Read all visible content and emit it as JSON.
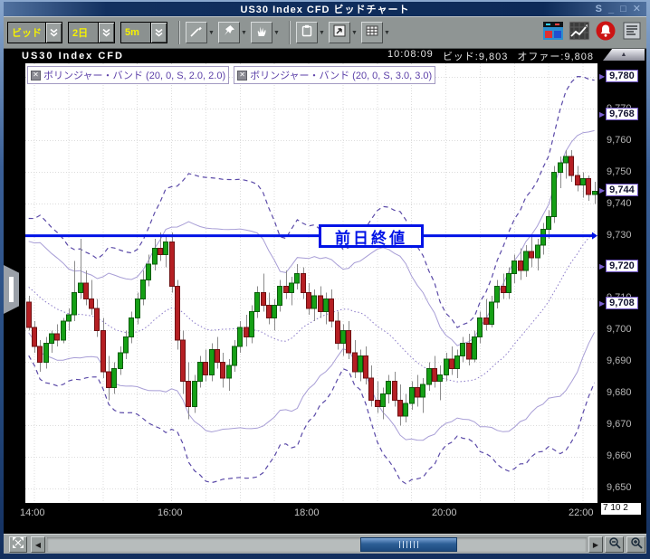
{
  "window": {
    "title": "US30 Index CFD ビッドチャート",
    "controls": [
      {
        "name": "float",
        "glyph": "S"
      },
      {
        "name": "minimize",
        "glyph": "_"
      },
      {
        "name": "maximize",
        "glyph": "□"
      },
      {
        "name": "close",
        "glyph": "✕"
      }
    ]
  },
  "toolbar": {
    "dropdowns": [
      {
        "label": "ビッド"
      },
      {
        "label": "2日"
      },
      {
        "label": "5m"
      }
    ]
  },
  "chart_header": {
    "title": "US30 Index CFD",
    "time": "10:08:09",
    "bid": "ビッド:9,803",
    "offer": "オファー:9,808"
  },
  "indicators": [
    {
      "label": "ボリンジャー・バンド (20, 0, S, 2.0, 2.0)"
    },
    {
      "label": "ボリンジャー・バンド (20, 0, S, 3.0, 3.0)"
    }
  ],
  "date_box": "7 10 2",
  "chart_data": {
    "type": "candlestick",
    "symbol": "US30 Index CFD",
    "interval_label": "5m",
    "range_label": "2日",
    "start_time": "13:55",
    "step_minutes": 5,
    "ylim": [
      9645.5,
      9784.5
    ],
    "y_tick_start": 9650,
    "y_tick_end": 9780,
    "y_tick_step": 10,
    "x_ticks": [
      {
        "label": "14:00",
        "index": 1
      },
      {
        "label": "16:00",
        "index": 25
      },
      {
        "label": "18:00",
        "index": 49
      },
      {
        "label": "20:00",
        "index": 73
      },
      {
        "label": "22:00",
        "index": 97
      }
    ],
    "prev_close": {
      "value": 9730,
      "label": "前日終値"
    },
    "price_labels": [
      {
        "value": 9780,
        "text": "9,780"
      },
      {
        "value": 9768,
        "text": "9,768"
      },
      {
        "value": 9744,
        "text": "9,744"
      },
      {
        "value": 9720,
        "text": "9,720"
      },
      {
        "value": 9708,
        "text": "9,708"
      }
    ],
    "bollinger": [
      {
        "period": 20,
        "shift": 0,
        "ma_type": "S",
        "dev": 2.0
      },
      {
        "period": 20,
        "shift": 0,
        "ma_type": "S",
        "dev": 3.0
      }
    ],
    "pre_closes": [
      9726,
      9724,
      9725,
      9722,
      9720,
      9718,
      9719,
      9716,
      9714,
      9715,
      9712,
      9713,
      9710,
      9708,
      9710,
      9707,
      9705,
      9706,
      9704
    ],
    "candles": [
      [
        9709,
        9711,
        9700,
        9701
      ],
      [
        9701,
        9703,
        9693,
        9695
      ],
      [
        9695,
        9697,
        9687,
        9690
      ],
      [
        9690,
        9698,
        9688,
        9696
      ],
      [
        9696,
        9700,
        9693,
        9699
      ],
      [
        9699,
        9702,
        9695,
        9697
      ],
      [
        9697,
        9704,
        9696,
        9703
      ],
      [
        9703,
        9707,
        9700,
        9705
      ],
      [
        9705,
        9722,
        9703,
        9712
      ],
      [
        9712,
        9729,
        9710,
        9715
      ],
      [
        9715,
        9719,
        9708,
        9710
      ],
      [
        9710,
        9716,
        9705,
        9707
      ],
      [
        9707,
        9710,
        9698,
        9700
      ],
      [
        9700,
        9704,
        9685,
        9687
      ],
      [
        9687,
        9692,
        9678,
        9682
      ],
      [
        9682,
        9690,
        9680,
        9688
      ],
      [
        9688,
        9695,
        9686,
        9693
      ],
      [
        9693,
        9700,
        9691,
        9698
      ],
      [
        9698,
        9706,
        9696,
        9704
      ],
      [
        9704,
        9712,
        9702,
        9710
      ],
      [
        9710,
        9719,
        9708,
        9716
      ],
      [
        9716,
        9724,
        9714,
        9721
      ],
      [
        9721,
        9729,
        9719,
        9726
      ],
      [
        9726,
        9731,
        9722,
        9724
      ],
      [
        9724,
        9730,
        9720,
        9728
      ],
      [
        9728,
        9731,
        9712,
        9714
      ],
      [
        9714,
        9716,
        9694,
        9697
      ],
      [
        9697,
        9700,
        9680,
        9684
      ],
      [
        9684,
        9690,
        9672,
        9676
      ],
      [
        9676,
        9686,
        9674,
        9684
      ],
      [
        9684,
        9692,
        9682,
        9690
      ],
      [
        9690,
        9694,
        9684,
        9686
      ],
      [
        9686,
        9696,
        9684,
        9694
      ],
      [
        9694,
        9698,
        9688,
        9690
      ],
      [
        9690,
        9693,
        9682,
        9685
      ],
      [
        9685,
        9691,
        9681,
        9689
      ],
      [
        9689,
        9697,
        9687,
        9695
      ],
      [
        9695,
        9703,
        9693,
        9701
      ],
      [
        9701,
        9705,
        9695,
        9698
      ],
      [
        9698,
        9708,
        9696,
        9706
      ],
      [
        9706,
        9714,
        9704,
        9712
      ],
      [
        9712,
        9718,
        9706,
        9708
      ],
      [
        9708,
        9712,
        9702,
        9704
      ],
      [
        9704,
        9710,
        9700,
        9708
      ],
      [
        9708,
        9716,
        9706,
        9714
      ],
      [
        9714,
        9719,
        9710,
        9712
      ],
      [
        9712,
        9717,
        9708,
        9715
      ],
      [
        9715,
        9721,
        9713,
        9718
      ],
      [
        9718,
        9720,
        9710,
        9712
      ],
      [
        9712,
        9715,
        9705,
        9707
      ],
      [
        9707,
        9713,
        9703,
        9711
      ],
      [
        9711,
        9714,
        9704,
        9706
      ],
      [
        9706,
        9712,
        9702,
        9710
      ],
      [
        9710,
        9713,
        9701,
        9703
      ],
      [
        9703,
        9706,
        9694,
        9696
      ],
      [
        9696,
        9702,
        9692,
        9700
      ],
      [
        9700,
        9703,
        9691,
        9693
      ],
      [
        9693,
        9697,
        9685,
        9687
      ],
      [
        9687,
        9694,
        9684,
        9692
      ],
      [
        9692,
        9695,
        9683,
        9685
      ],
      [
        9685,
        9689,
        9676,
        9678
      ],
      [
        9678,
        9684,
        9674,
        9676
      ],
      [
        9676,
        9682,
        9672,
        9680
      ],
      [
        9680,
        9686,
        9677,
        9684
      ],
      [
        9684,
        9687,
        9676,
        9678
      ],
      [
        9678,
        9683,
        9670,
        9673
      ],
      [
        9673,
        9680,
        9671,
        9677
      ],
      [
        9677,
        9684,
        9675,
        9682
      ],
      [
        9682,
        9686,
        9676,
        9679
      ],
      [
        9679,
        9685,
        9674,
        9683
      ],
      [
        9683,
        9690,
        9681,
        9688
      ],
      [
        9688,
        9692,
        9682,
        9684
      ],
      [
        9684,
        9689,
        9678,
        9686
      ],
      [
        9686,
        9693,
        9684,
        9691
      ],
      [
        9691,
        9695,
        9686,
        9688
      ],
      [
        9688,
        9694,
        9685,
        9692
      ],
      [
        9692,
        9698,
        9690,
        9696
      ],
      [
        9696,
        9699,
        9689,
        9691
      ],
      [
        9691,
        9700,
        9690,
        9698
      ],
      [
        9698,
        9706,
        9696,
        9704
      ],
      [
        9704,
        9710,
        9700,
        9702
      ],
      [
        9702,
        9711,
        9701,
        9709
      ],
      [
        9709,
        9716,
        9707,
        9714
      ],
      [
        9714,
        9718,
        9710,
        9712
      ],
      [
        9712,
        9720,
        9710,
        9718
      ],
      [
        9718,
        9724,
        9715,
        9722
      ],
      [
        9722,
        9726,
        9716,
        9719
      ],
      [
        9719,
        9727,
        9717,
        9725
      ],
      [
        9725,
        9730,
        9720,
        9723
      ],
      [
        9723,
        9729,
        9719,
        9727
      ],
      [
        9727,
        9734,
        9724,
        9732
      ],
      [
        9732,
        9738,
        9729,
        9736
      ],
      [
        9736,
        9752,
        9734,
        9750
      ],
      [
        9750,
        9755,
        9745,
        9753
      ],
      [
        9753,
        9757,
        9748,
        9755
      ],
      [
        9755,
        9757,
        9747,
        9749
      ],
      [
        9749,
        9752,
        9744,
        9746
      ],
      [
        9746,
        9750,
        9742,
        9748
      ],
      [
        9748,
        9749,
        9741,
        9743
      ],
      [
        9743,
        9747,
        9740,
        9744
      ]
    ],
    "colors": {
      "up": "#15a015",
      "up_border": "#0b5c0b",
      "down": "#b51f23",
      "down_border": "#6e1012",
      "wick": "#8c8c8c",
      "band2": "#a89ed6",
      "band3": "#5b4aa8",
      "mid": "#8a7ac8",
      "grid": "#dcdcdc",
      "prev_close_line": "#0013e6"
    }
  }
}
